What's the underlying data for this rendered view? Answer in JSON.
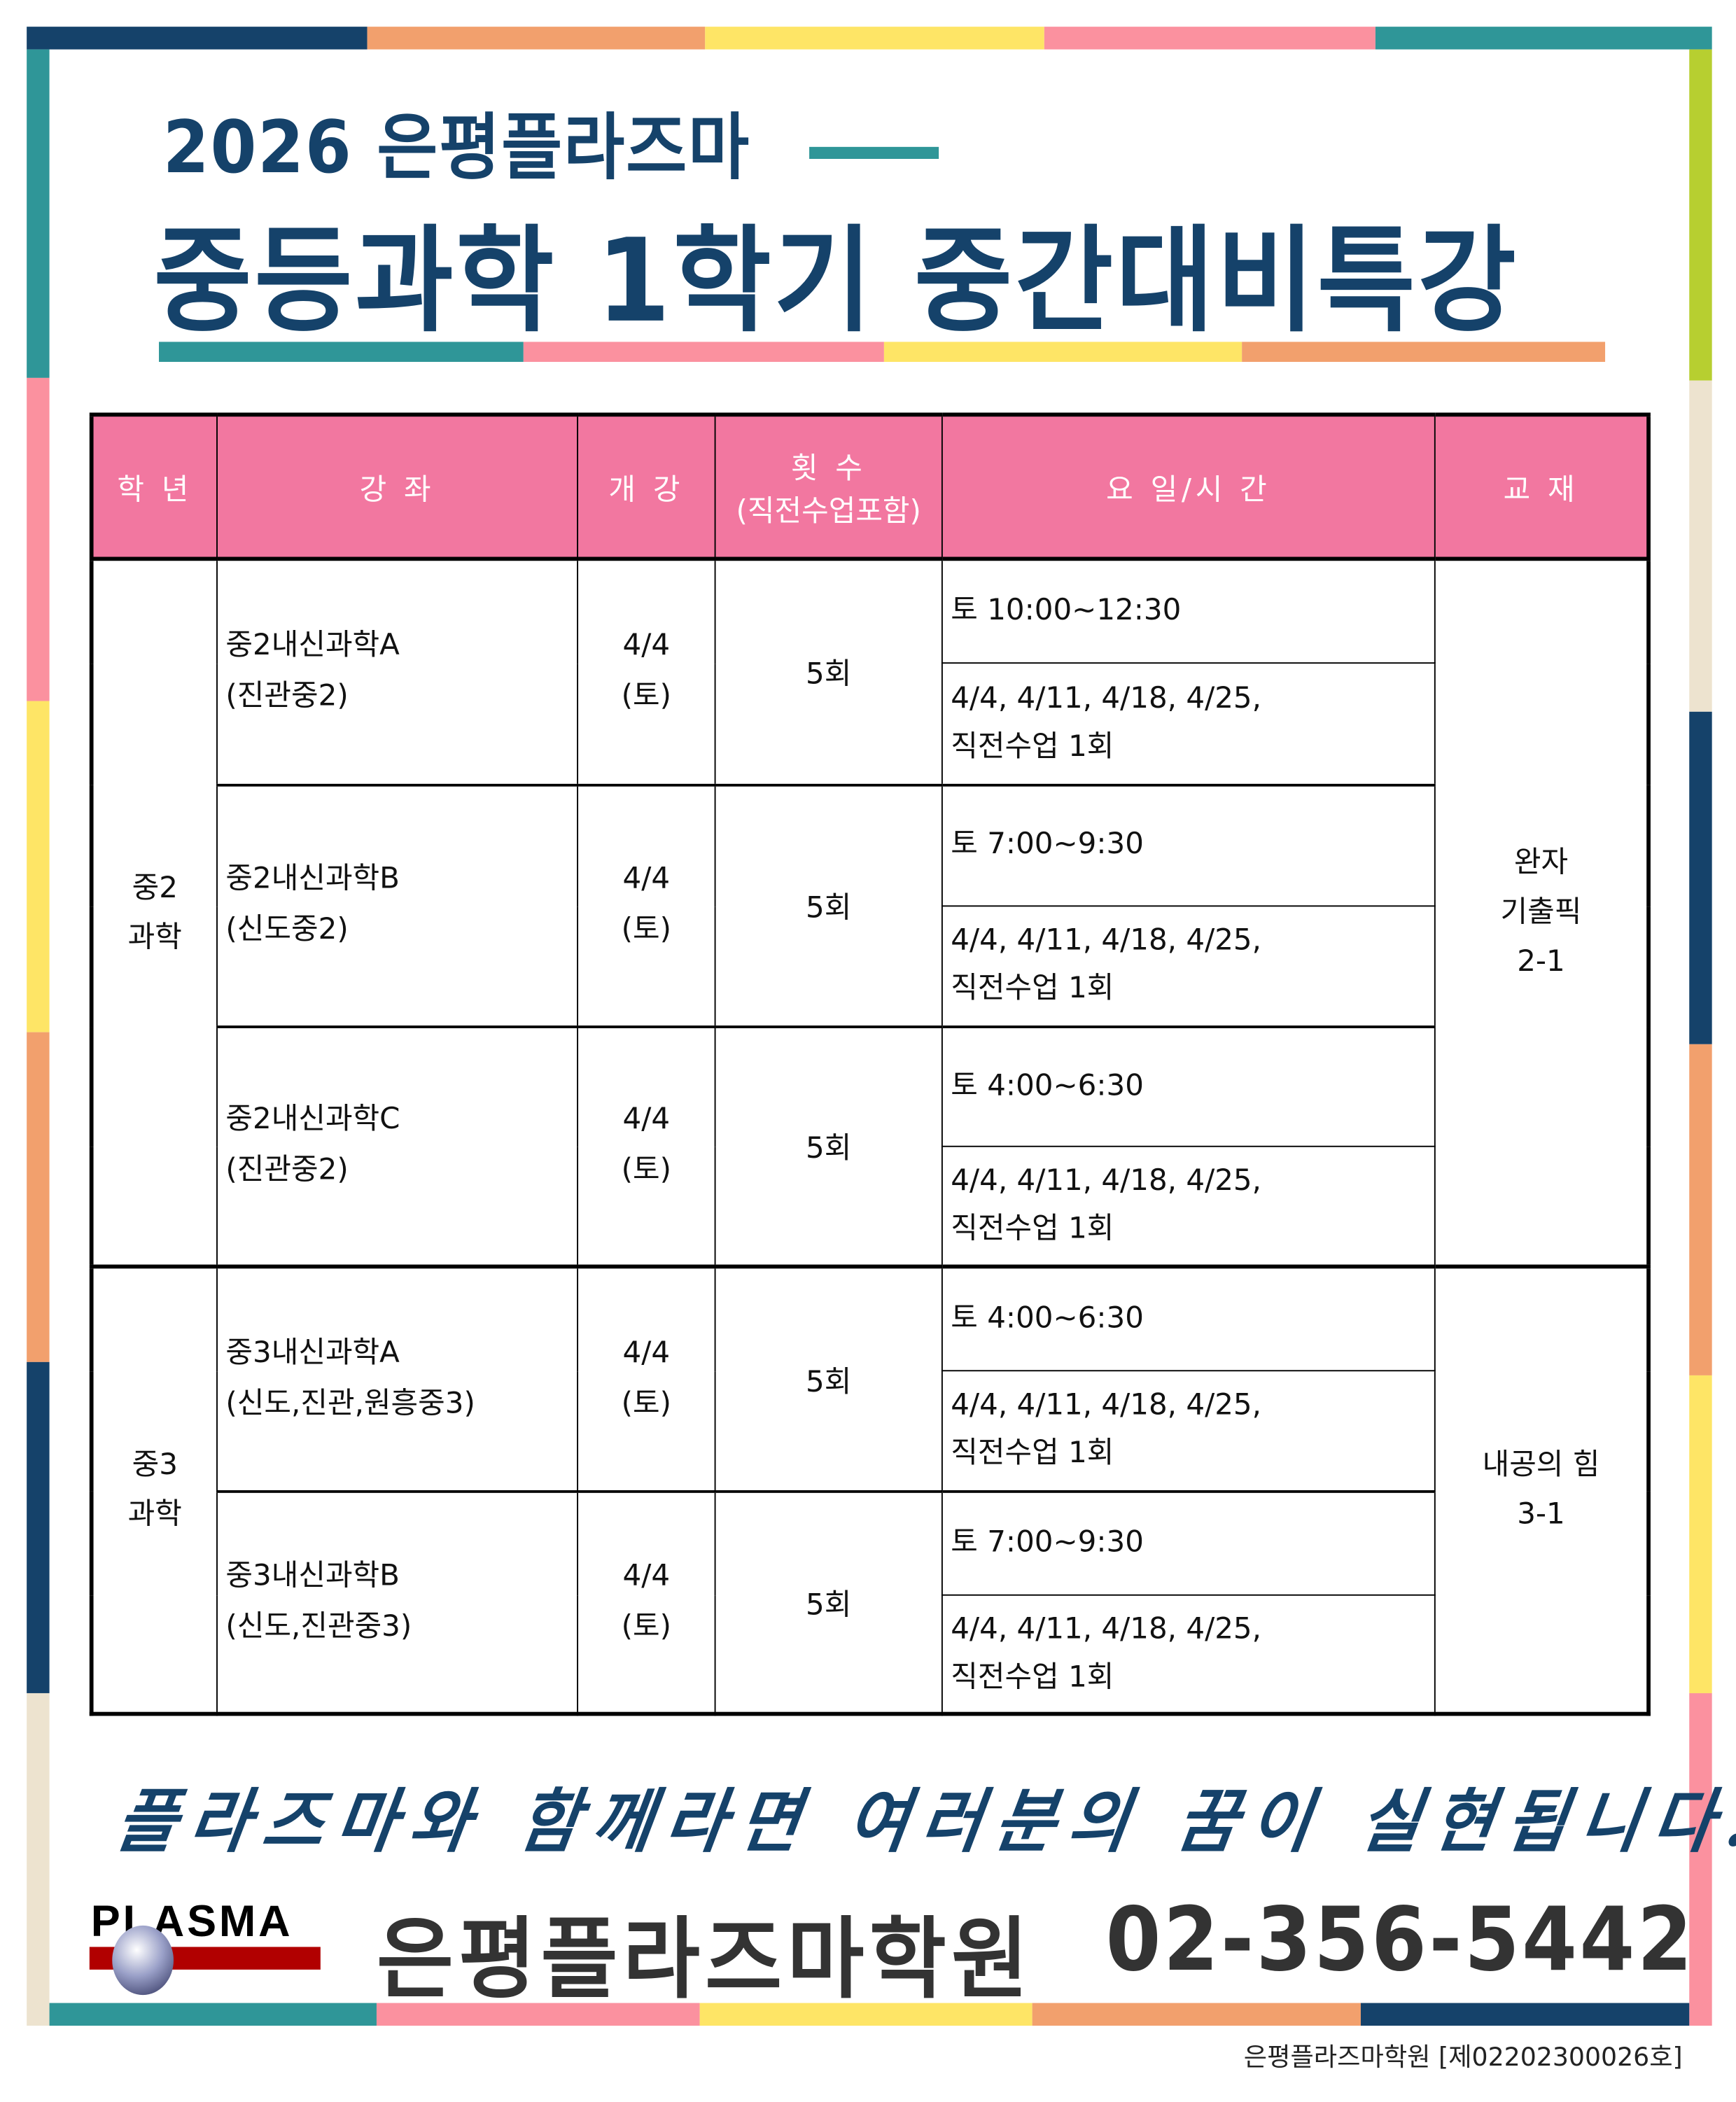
{
  "colors": {
    "navy": "#15426a",
    "teal": "#2f9698",
    "pink": "#fb919f",
    "yellow": "#fee566",
    "orange": "#f2a06d",
    "lime": "#b7cf30",
    "beige": "#ede3cf",
    "header": "#f277a0"
  },
  "header": {
    "subtitle": "2026 은평플라즈마",
    "title": "중등과학 1학기 중간대비특강"
  },
  "table": {
    "columns": [
      "학 년",
      "강 좌",
      "개 강",
      "횟 수",
      "(직전수업포함)",
      "요 일/시 간",
      "교 재"
    ],
    "groups": [
      {
        "grade": "중2\n과학",
        "book": "완자\n기출픽\n2-1",
        "courses": [
          {
            "name": "중2내신과학A\n(진관중2)",
            "start": "4/4\n(토)",
            "count": "5회",
            "time": "토 10:00~12:30",
            "dates": "4/4, 4/11, 4/18, 4/25,\n직전수업 1회"
          },
          {
            "name": "중2내신과학B\n(신도중2)",
            "start": "4/4\n(토)",
            "count": "5회",
            "time": "토 7:00~9:30",
            "dates": "4/4, 4/11, 4/18, 4/25,\n직전수업 1회"
          },
          {
            "name": "중2내신과학C\n(진관중2)",
            "start": "4/4\n(토)",
            "count": "5회",
            "time": "토 4:00~6:30",
            "dates": "4/4, 4/11, 4/18, 4/25,\n직전수업 1회"
          }
        ]
      },
      {
        "grade": "중3\n과학",
        "book": "내공의 힘\n3-1",
        "courses": [
          {
            "name": "중3내신과학A\n(신도,진관,원흥중3)",
            "start": "4/4\n(토)",
            "count": "5회",
            "time": "토 4:00~6:30",
            "dates": "4/4, 4/11, 4/18, 4/25,\n직전수업 1회"
          },
          {
            "name": "중3내신과학B\n(신도,진관중3)",
            "start": "4/4\n(토)",
            "count": "5회",
            "time": "토 7:00~9:30",
            "dates": "4/4, 4/11, 4/18, 4/25,\n직전수업 1회"
          }
        ]
      }
    ]
  },
  "slogan": "플라즈마와 함께라면 여러분의 꿈이 실현됩니다!!",
  "footer": {
    "logo": "PLASMA",
    "academy": "은평플라즈마학원",
    "phone": "02-356-5442",
    "registration": "은평플라즈마학원 [제02202300026호]"
  }
}
